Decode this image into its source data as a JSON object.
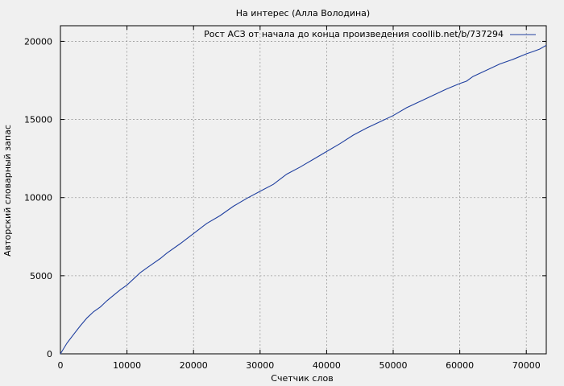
{
  "chart_data": {
    "type": "line",
    "title": "На интерес (Алла Володина)",
    "xlabel": "Счетчик слов",
    "ylabel": "Авторский словарный запас",
    "xlim": [
      0,
      73000
    ],
    "ylim": [
      0,
      21000
    ],
    "xticks": [
      0,
      10000,
      20000,
      30000,
      40000,
      50000,
      60000,
      70000
    ],
    "yticks": [
      0,
      5000,
      10000,
      15000,
      20000
    ],
    "grid": true,
    "legend_position": "top-right",
    "series": [
      {
        "name": "Рост АСЗ от начала до конца произведения coollib.net/b/737294",
        "color": "#1f3f9f",
        "x": [
          0,
          1000,
          2000,
          3000,
          4000,
          5000,
          6000,
          7000,
          8000,
          9000,
          10000,
          11000,
          12000,
          13000,
          14000,
          15000,
          16000,
          18000,
          20000,
          22000,
          24000,
          26000,
          28000,
          30000,
          32000,
          34000,
          36000,
          38000,
          40000,
          42000,
          44000,
          46000,
          48000,
          50000,
          52000,
          54000,
          56000,
          58000,
          60000,
          61000,
          62000,
          64000,
          66000,
          68000,
          70000,
          71000,
          72000,
          73000
        ],
        "y": [
          0,
          700,
          1250,
          1800,
          2300,
          2700,
          3000,
          3400,
          3750,
          4100,
          4400,
          4800,
          5200,
          5500,
          5800,
          6100,
          6450,
          7050,
          7700,
          8350,
          8850,
          9450,
          9950,
          10400,
          10850,
          11500,
          11950,
          12450,
          12950,
          13450,
          14000,
          14450,
          14850,
          15250,
          15750,
          16150,
          16550,
          16950,
          17300,
          17450,
          17750,
          18150,
          18550,
          18850,
          19200,
          19350,
          19500,
          19750
        ]
      }
    ]
  }
}
